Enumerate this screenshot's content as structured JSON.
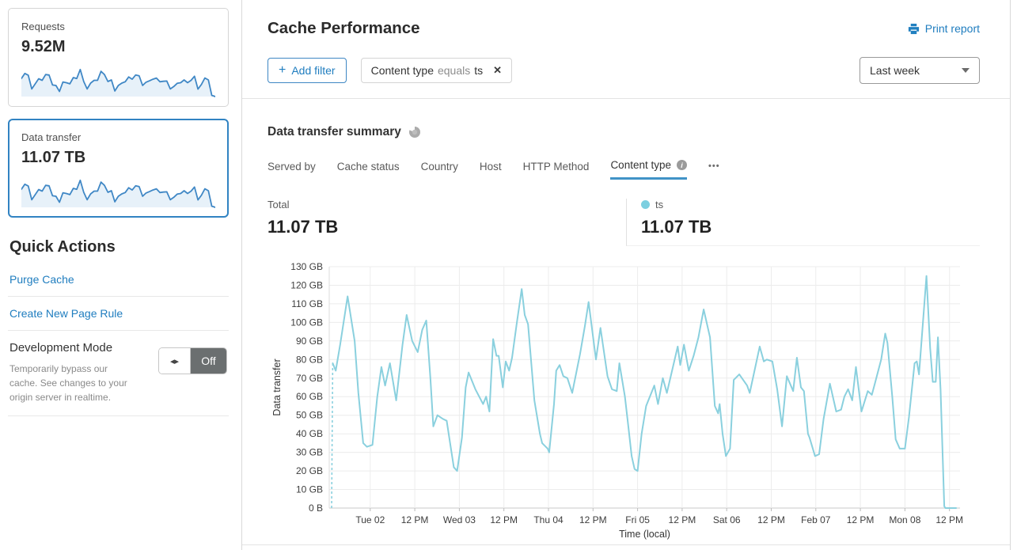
{
  "icons": {
    "plus": "+",
    "close": "✕",
    "arrows": "◂▸",
    "info": "i",
    "ellipsis": "•••"
  },
  "colors": {
    "accent_blue": "#1f7dbf",
    "chart_line": "#8ad0de",
    "legend_dot": "#7ccfe0",
    "spark_line": "#3f87c5",
    "spark_fill": "#e7f1f9",
    "active_tab_underline": "#4093c7"
  },
  "sidebar": {
    "cards": [
      {
        "label": "Requests",
        "value": "9.52M",
        "sparkline": [
          78,
          100,
          92,
          33,
          55,
          77,
          70,
          95,
          93,
          50,
          48,
          22,
          63,
          60,
          55,
          82,
          78,
          117,
          65,
          33,
          58,
          70,
          70,
          109,
          95,
          65,
          72,
          24,
          48,
          58,
          64,
          85,
          75,
          93,
          90,
          48,
          62,
          68,
          75,
          80,
          64,
          66,
          67,
          33,
          43,
          57,
          60,
          72,
          60,
          70,
          88,
          32,
          52,
          80,
          72,
          5,
          0
        ]
      },
      {
        "label": "Data transfer",
        "value": "11.07 TB",
        "selected": true,
        "sparkline": [
          78,
          100,
          92,
          33,
          55,
          77,
          70,
          95,
          93,
          50,
          48,
          22,
          63,
          60,
          55,
          82,
          78,
          117,
          65,
          33,
          58,
          70,
          70,
          109,
          95,
          65,
          72,
          24,
          48,
          58,
          64,
          85,
          75,
          93,
          90,
          48,
          62,
          68,
          75,
          80,
          64,
          66,
          67,
          33,
          43,
          57,
          60,
          72,
          60,
          70,
          88,
          32,
          52,
          80,
          72,
          5,
          0
        ]
      }
    ],
    "quick_actions": {
      "title": "Quick Actions",
      "links": [
        "Purge Cache",
        "Create New Page Rule"
      ],
      "dev_mode": {
        "title": "Development Mode",
        "description": "Temporarily bypass our cache. See changes to your origin server in realtime.",
        "toggle_label": "Off"
      }
    }
  },
  "header": {
    "title": "Cache Performance",
    "print_label": "Print report"
  },
  "filters": {
    "add_label": "Add filter",
    "items": [
      {
        "field": "Content type",
        "operator": "equals",
        "value": "ts"
      }
    ]
  },
  "time_range": {
    "value": "Last week"
  },
  "summary": {
    "title": "Data transfer summary",
    "tabs": [
      {
        "label": "Served by"
      },
      {
        "label": "Cache status"
      },
      {
        "label": "Country"
      },
      {
        "label": "Host"
      },
      {
        "label": "HTTP Method"
      },
      {
        "label": "Content type",
        "active": true,
        "has_info": true
      }
    ],
    "total": {
      "label": "Total",
      "value": "11.07 TB"
    },
    "legend": {
      "name": "ts",
      "value": "11.07 TB"
    }
  },
  "chart_data": {
    "type": "line",
    "title": "Data transfer summary",
    "xlabel": "Time (local)",
    "ylabel": "Data transfer",
    "unit": "GB",
    "y_max_gb": 130,
    "y_ticks": [
      "0 B",
      "10 GB",
      "20 GB",
      "30 GB",
      "40 GB",
      "50 GB",
      "60 GB",
      "70 GB",
      "80 GB",
      "90 GB",
      "100 GB",
      "110 GB",
      "120 GB",
      "130 GB"
    ],
    "x_ticks": [
      "Tue 02",
      "12 PM",
      "Wed 03",
      "12 PM",
      "Thu 04",
      "12 PM",
      "Fri 05",
      "12 PM",
      "Sat 06",
      "12 PM",
      "Feb 07",
      "12 PM",
      "Mon 08",
      "12 PM"
    ],
    "x_tick_start_hour": 10.4,
    "x_tick_interval_hours": 12,
    "total_hours": 168.6,
    "grid": true,
    "legend_position": "top-right",
    "series": [
      {
        "name": "ts",
        "color": "#8ad0de",
        "lead_in_dashed": [
          [
            0,
            0
          ],
          [
            0.3,
            78
          ]
        ],
        "points": [
          [
            0.3,
            78
          ],
          [
            1.1,
            74
          ],
          [
            2.3,
            88
          ],
          [
            4.3,
            114
          ],
          [
            6.2,
            90
          ],
          [
            7.2,
            62
          ],
          [
            8.5,
            35
          ],
          [
            9.5,
            33
          ],
          [
            11,
            34
          ],
          [
            12.3,
            60
          ],
          [
            13.4,
            76
          ],
          [
            14.4,
            66
          ],
          [
            15.7,
            78
          ],
          [
            17.4,
            58
          ],
          [
            19.1,
            88
          ],
          [
            20.2,
            104
          ],
          [
            21.7,
            90
          ],
          [
            23.2,
            84
          ],
          [
            24.4,
            96
          ],
          [
            25.5,
            101
          ],
          [
            26.6,
            70
          ],
          [
            27.4,
            44
          ],
          [
            28.5,
            50
          ],
          [
            30,
            48
          ],
          [
            31,
            47
          ],
          [
            31.9,
            35
          ],
          [
            32.9,
            22
          ],
          [
            33.8,
            20
          ],
          [
            35.1,
            38
          ],
          [
            36.1,
            65
          ],
          [
            36.9,
            73
          ],
          [
            38.7,
            64
          ],
          [
            40.8,
            56
          ],
          [
            41.6,
            60
          ],
          [
            42.5,
            52
          ],
          [
            43.5,
            91
          ],
          [
            44.4,
            82
          ],
          [
            45,
            82
          ],
          [
            46.1,
            65
          ],
          [
            46.9,
            79
          ],
          [
            47.8,
            74
          ],
          [
            48.6,
            81
          ],
          [
            49.9,
            100
          ],
          [
            51.2,
            118
          ],
          [
            52,
            104
          ],
          [
            52.9,
            99
          ],
          [
            54.6,
            58
          ],
          [
            56.1,
            40
          ],
          [
            56.7,
            35
          ],
          [
            58.2,
            32
          ],
          [
            58.6,
            30
          ],
          [
            59.9,
            56
          ],
          [
            60.5,
            74
          ],
          [
            61.4,
            77
          ],
          [
            62.4,
            71
          ],
          [
            63.5,
            70
          ],
          [
            64.8,
            62
          ],
          [
            66.9,
            83
          ],
          [
            68.2,
            98
          ],
          [
            69.2,
            111
          ],
          [
            71.2,
            80
          ],
          [
            72.4,
            97
          ],
          [
            74.3,
            71
          ],
          [
            75.5,
            64
          ],
          [
            76.8,
            63
          ],
          [
            77.5,
            78
          ],
          [
            79,
            60
          ],
          [
            79.9,
            44
          ],
          [
            80.8,
            28
          ],
          [
            81.6,
            21
          ],
          [
            82.4,
            20
          ],
          [
            83.5,
            40
          ],
          [
            84.7,
            55
          ],
          [
            86.9,
            66
          ],
          [
            87.9,
            56
          ],
          [
            89.2,
            70
          ],
          [
            90.3,
            62
          ],
          [
            93.2,
            87
          ],
          [
            93.9,
            77
          ],
          [
            94.9,
            88
          ],
          [
            96.2,
            74
          ],
          [
            97.5,
            82
          ],
          [
            98.8,
            92
          ],
          [
            100.2,
            107
          ],
          [
            101.9,
            92
          ],
          [
            103.2,
            55
          ],
          [
            104.1,
            51
          ],
          [
            104.5,
            56
          ],
          [
            105.3,
            40
          ],
          [
            106.2,
            28
          ],
          [
            107.3,
            32
          ],
          [
            108.3,
            69
          ],
          [
            109.8,
            72
          ],
          [
            111.9,
            66
          ],
          [
            112.6,
            62
          ],
          [
            115.3,
            87
          ],
          [
            116.4,
            79
          ],
          [
            117.2,
            80
          ],
          [
            118.7,
            79
          ],
          [
            120,
            64
          ],
          [
            121.3,
            44
          ],
          [
            122.6,
            71
          ],
          [
            124.3,
            63
          ],
          [
            125.3,
            81
          ],
          [
            126.4,
            65
          ],
          [
            127.2,
            63
          ],
          [
            128.3,
            40
          ],
          [
            128.7,
            38
          ],
          [
            130.2,
            28
          ],
          [
            131.3,
            29
          ],
          [
            132.5,
            48
          ],
          [
            134.2,
            67
          ],
          [
            135.9,
            52
          ],
          [
            137.2,
            53
          ],
          [
            138.1,
            60
          ],
          [
            139.1,
            64
          ],
          [
            140.2,
            58
          ],
          [
            141.2,
            76
          ],
          [
            142.7,
            52
          ],
          [
            144.4,
            63
          ],
          [
            145.5,
            61
          ],
          [
            146.3,
            67
          ],
          [
            148,
            80
          ],
          [
            149.1,
            94
          ],
          [
            149.7,
            89
          ],
          [
            151,
            60
          ],
          [
            151.9,
            37
          ],
          [
            153,
            32
          ],
          [
            154.4,
            32
          ],
          [
            155.5,
            49
          ],
          [
            157,
            78
          ],
          [
            157.6,
            79
          ],
          [
            158.2,
            72
          ],
          [
            160.2,
            125
          ],
          [
            161.2,
            86
          ],
          [
            161.9,
            68
          ],
          [
            162.7,
            68
          ],
          [
            163.3,
            92
          ],
          [
            164,
            64
          ],
          [
            165,
            1
          ],
          [
            165.3,
            0
          ],
          [
            168.2,
            0
          ]
        ]
      }
    ]
  }
}
